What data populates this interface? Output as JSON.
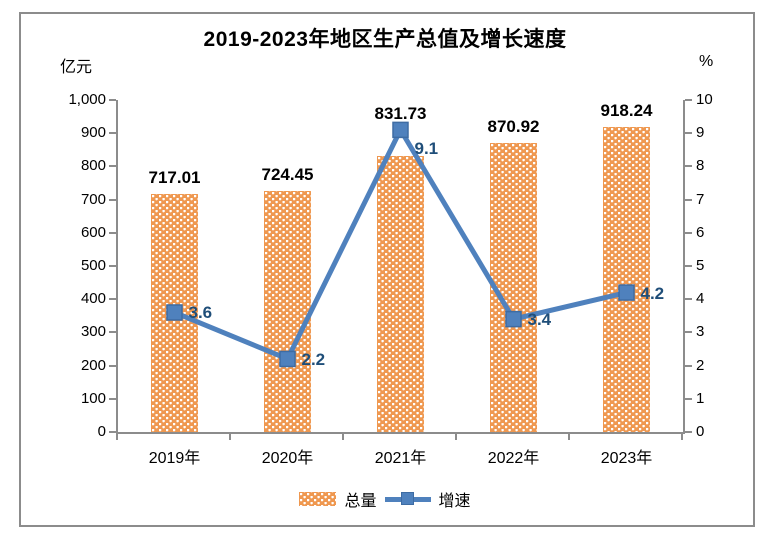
{
  "window": {
    "border_color": "#8C8C8C",
    "background": "#FFFFFF"
  },
  "chart_data": {
    "type": "bar+line combo",
    "title": "2019-2023年地区生产总值及增长速度",
    "categories": [
      "2019年",
      "2020年",
      "2021年",
      "2022年",
      "2023年"
    ],
    "series": [
      {
        "name": "总量",
        "type": "bar",
        "axis": "left",
        "values": [
          717.01,
          724.45,
          831.73,
          870.92,
          918.24
        ],
        "labels": [
          "717.01",
          "724.45",
          "831.73",
          "870.92",
          "918.24"
        ],
        "color": "#EF9850",
        "pattern": "white-dots"
      },
      {
        "name": "增速",
        "type": "line",
        "axis": "right",
        "values": [
          3.6,
          2.2,
          9.1,
          3.4,
          4.2
        ],
        "labels": [
          "3.6",
          "2.2",
          "9.1",
          "3.4",
          "4.2"
        ],
        "color": "#4F81BD",
        "marker": "square",
        "label_color": "#1F4E79",
        "label_dy": [
          0,
          0,
          18,
          0,
          0
        ]
      }
    ],
    "left_axis": {
      "unit": "亿元",
      "min": 0,
      "max": 1000,
      "step": 100,
      "tick_labels": [
        "0",
        "100",
        "200",
        "300",
        "400",
        "500",
        "600",
        "700",
        "800",
        "900",
        "1,000"
      ]
    },
    "right_axis": {
      "unit": "%",
      "min": 0,
      "max": 10,
      "step": 1,
      "tick_labels": [
        "0",
        "1",
        "2",
        "3",
        "4",
        "5",
        "6",
        "7",
        "8",
        "9",
        "10"
      ]
    },
    "legend": {
      "position": "bottom",
      "items": [
        "总量",
        "增速"
      ]
    },
    "grid": "off",
    "axis_color": "#8C8C8C"
  }
}
